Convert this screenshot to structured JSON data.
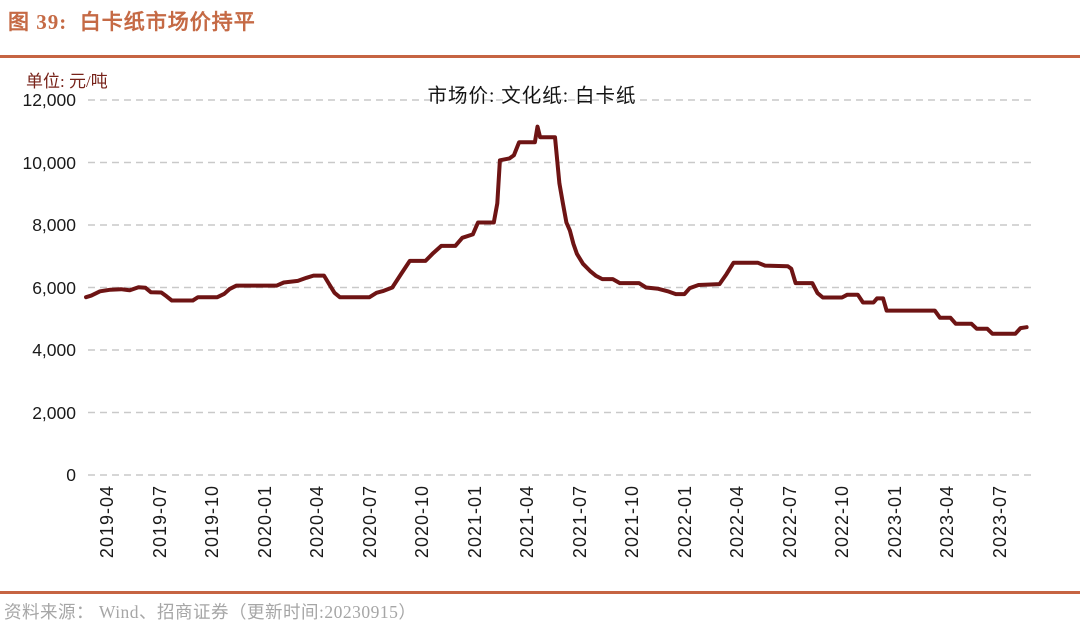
{
  "header": {
    "title": "图 39:  白卡纸市场价持平"
  },
  "chart": {
    "unit_label": "单位: 元/吨",
    "legend_label": "市场价: 文化纸: 白卡纸",
    "colors": {
      "accent_divider": "#C66442",
      "title_text": "#C56A45",
      "unit_text": "#772219",
      "line": "#6E1414",
      "grid": "#C9C9C9",
      "axis_text": "#1a1a1a",
      "source_text": "#A6A6A6"
    }
  },
  "chart_data": {
    "type": "line",
    "title": "白卡纸市场价持平",
    "series_name": "市场价: 文化纸: 白卡纸",
    "unit": "元/吨",
    "ylim": [
      0,
      12000
    ],
    "grid": "dashed-horizontal",
    "legend_position": "top-center",
    "y_ticks": [
      0,
      2000,
      4000,
      6000,
      8000,
      10000,
      12000
    ],
    "y_tick_labels": [
      "0",
      "2,000",
      "4,000",
      "6,000",
      "8,000",
      "10,000",
      "12,000"
    ],
    "x_tick_labels": [
      "2019-04",
      "2019-07",
      "2019-10",
      "2020-01",
      "2020-04",
      "2020-07",
      "2020-10",
      "2021-01",
      "2021-04",
      "2021-07",
      "2021-10",
      "2022-01",
      "2022-04",
      "2022-07",
      "2022-10",
      "2023-01",
      "2023-04",
      "2023-07"
    ],
    "x_unit_note": "points use m = months after 2019-04; v = price in 元/吨",
    "points": [
      [
        -1.2,
        5690
      ],
      [
        -0.9,
        5740
      ],
      [
        -0.4,
        5880
      ],
      [
        0.2,
        5930
      ],
      [
        0.8,
        5945
      ],
      [
        1.3,
        5910
      ],
      [
        1.8,
        6010
      ],
      [
        2.2,
        5990
      ],
      [
        2.5,
        5850
      ],
      [
        3.1,
        5840
      ],
      [
        3.4,
        5720
      ],
      [
        3.7,
        5585
      ],
      [
        4.9,
        5585
      ],
      [
        5.2,
        5690
      ],
      [
        6.3,
        5690
      ],
      [
        6.7,
        5800
      ],
      [
        7.0,
        5950
      ],
      [
        7.4,
        6060
      ],
      [
        9.7,
        6060
      ],
      [
        10.1,
        6160
      ],
      [
        10.9,
        6210
      ],
      [
        11.4,
        6310
      ],
      [
        11.8,
        6380
      ],
      [
        12.4,
        6380
      ],
      [
        12.7,
        6100
      ],
      [
        13.0,
        5830
      ],
      [
        13.3,
        5690
      ],
      [
        15.0,
        5690
      ],
      [
        15.4,
        5830
      ],
      [
        15.8,
        5890
      ],
      [
        16.3,
        6000
      ],
      [
        16.8,
        6430
      ],
      [
        17.3,
        6850
      ],
      [
        18.2,
        6850
      ],
      [
        18.6,
        7080
      ],
      [
        19.1,
        7330
      ],
      [
        19.9,
        7330
      ],
      [
        20.3,
        7590
      ],
      [
        20.9,
        7700
      ],
      [
        21.2,
        8080
      ],
      [
        22.1,
        8080
      ],
      [
        22.3,
        8690
      ],
      [
        22.45,
        10070
      ],
      [
        23.0,
        10130
      ],
      [
        23.25,
        10230
      ],
      [
        23.55,
        10650
      ],
      [
        24.45,
        10650
      ],
      [
        24.6,
        11150
      ],
      [
        24.75,
        10810
      ],
      [
        25.6,
        10810
      ],
      [
        25.85,
        9330
      ],
      [
        26.05,
        8690
      ],
      [
        26.25,
        8080
      ],
      [
        26.45,
        7820
      ],
      [
        26.65,
        7400
      ],
      [
        26.85,
        7080
      ],
      [
        27.2,
        6760
      ],
      [
        27.6,
        6530
      ],
      [
        27.95,
        6370
      ],
      [
        28.3,
        6270
      ],
      [
        28.9,
        6270
      ],
      [
        29.3,
        6140
      ],
      [
        30.4,
        6140
      ],
      [
        30.8,
        6000
      ],
      [
        31.5,
        5960
      ],
      [
        32.1,
        5870
      ],
      [
        32.5,
        5790
      ],
      [
        33.0,
        5790
      ],
      [
        33.3,
        5980
      ],
      [
        33.8,
        6080
      ],
      [
        35.0,
        6110
      ],
      [
        35.4,
        6430
      ],
      [
        35.8,
        6790
      ],
      [
        37.2,
        6790
      ],
      [
        37.6,
        6700
      ],
      [
        38.9,
        6680
      ],
      [
        39.1,
        6600
      ],
      [
        39.35,
        6140
      ],
      [
        40.3,
        6140
      ],
      [
        40.6,
        5820
      ],
      [
        40.9,
        5680
      ],
      [
        42.0,
        5680
      ],
      [
        42.3,
        5770
      ],
      [
        42.9,
        5770
      ],
      [
        43.2,
        5520
      ],
      [
        43.8,
        5520
      ],
      [
        44.0,
        5650
      ],
      [
        44.35,
        5650
      ],
      [
        44.55,
        5260
      ],
      [
        47.3,
        5260
      ],
      [
        47.6,
        5030
      ],
      [
        48.2,
        5030
      ],
      [
        48.5,
        4840
      ],
      [
        49.4,
        4840
      ],
      [
        49.7,
        4680
      ],
      [
        50.3,
        4680
      ],
      [
        50.6,
        4520
      ],
      [
        51.9,
        4520
      ],
      [
        52.2,
        4700
      ],
      [
        52.55,
        4730
      ]
    ]
  },
  "footer": {
    "source": "资料来源： Wind、招商证券（更新时间:20230915）"
  }
}
